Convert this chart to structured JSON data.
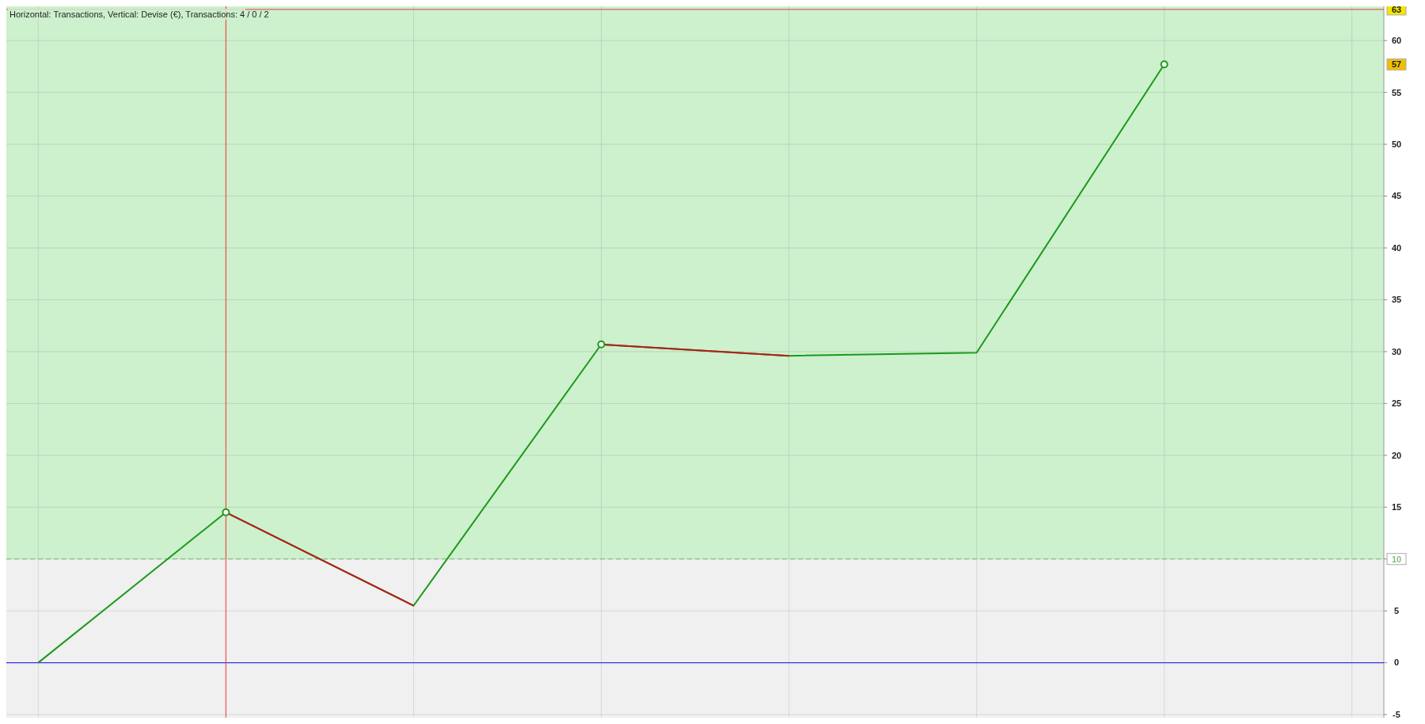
{
  "chart_data": {
    "type": "line",
    "title": "Horizontal: Transactions, Vertical: Devise (€), Transactions: 4 / 0 / 2",
    "categories": [
      null,
      null,
      null,
      null,
      null,
      null,
      null,
      null
    ],
    "series": [
      {
        "color": "#1a9a1a",
        "values": [
          0,
          14.5,
          5.5,
          30.7,
          29.6,
          29.9,
          57.7,
          null
        ]
      },
      {
        "color": "#b81c1c",
        "values": [
          null,
          14.5,
          5.5,
          null,
          null,
          null,
          null,
          null
        ]
      },
      {
        "color": "#b81c1c",
        "values": [
          null,
          null,
          null,
          30.7,
          29.6,
          null,
          null,
          null
        ]
      },
      {
        "type": "scatter",
        "color": "#1a9a1a",
        "values": [
          null,
          14.5,
          null,
          30.7,
          null,
          null,
          57.7,
          null
        ],
        "marker": "circle"
      }
    ],
    "ylim": [
      -5.3,
      63.3
    ],
    "yticks": [
      -5,
      0,
      5,
      10,
      15,
      20,
      25,
      30,
      35,
      40,
      45,
      50,
      55,
      60
    ],
    "tick_labels": "y",
    "grid": true,
    "ref_lines": [
      {
        "axis": "y",
        "value": 0,
        "color": "#3333ee"
      },
      {
        "axis": "y",
        "value": 10,
        "label": "10",
        "color": "#88bb88",
        "line_style": "dashed"
      },
      {
        "axis": "y",
        "value": 63,
        "label": "63",
        "color": "#e06060"
      }
    ],
    "bands": [
      {
        "axis": "y",
        "from": 10,
        "to": 63.3,
        "color": "#cdf0cd"
      }
    ],
    "annotations": [
      "57"
    ]
  }
}
